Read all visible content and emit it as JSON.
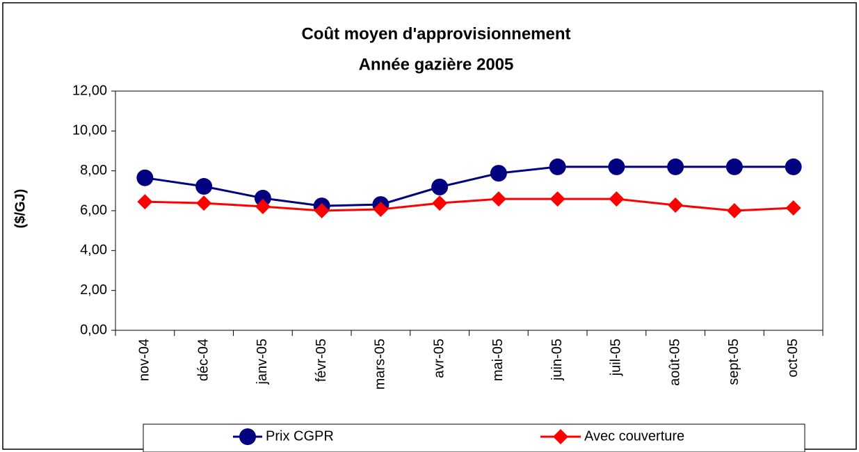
{
  "chart_data": {
    "type": "line",
    "title": [
      "Coût moyen d'approvisionnement",
      "Année gazière 2005"
    ],
    "ylabel": "($/GJ)",
    "categories": [
      "nov-04",
      "déc-04",
      "janv-05",
      "févr-05",
      "mars-05",
      "avr-05",
      "mai-05",
      "juin-05",
      "juil-05",
      "août-05",
      "sept-05",
      "oct-05"
    ],
    "series": [
      {
        "name": "Prix CGPR",
        "color": "#000080",
        "marker": "circle",
        "values": [
          7.65,
          7.22,
          6.63,
          6.24,
          6.31,
          7.19,
          7.88,
          8.2,
          8.2,
          8.2,
          8.2,
          8.2
        ]
      },
      {
        "name": "Avec couverture",
        "color": "#ff0000",
        "marker": "diamond",
        "values": [
          6.45,
          6.38,
          6.21,
          6.0,
          6.07,
          6.38,
          6.59,
          6.59,
          6.59,
          6.28,
          6.0,
          6.14
        ]
      }
    ],
    "ylim": [
      0,
      12
    ],
    "yticks": [
      {
        "value": 0,
        "label": "0,00"
      },
      {
        "value": 2,
        "label": "2,00"
      },
      {
        "value": 4,
        "label": "4,00"
      },
      {
        "value": 6,
        "label": "6,00"
      },
      {
        "value": 8,
        "label": "8,00"
      },
      {
        "value": 10,
        "label": "10,00"
      },
      {
        "value": 12,
        "label": "12,00"
      }
    ],
    "grid": false,
    "legend": "bottom"
  }
}
